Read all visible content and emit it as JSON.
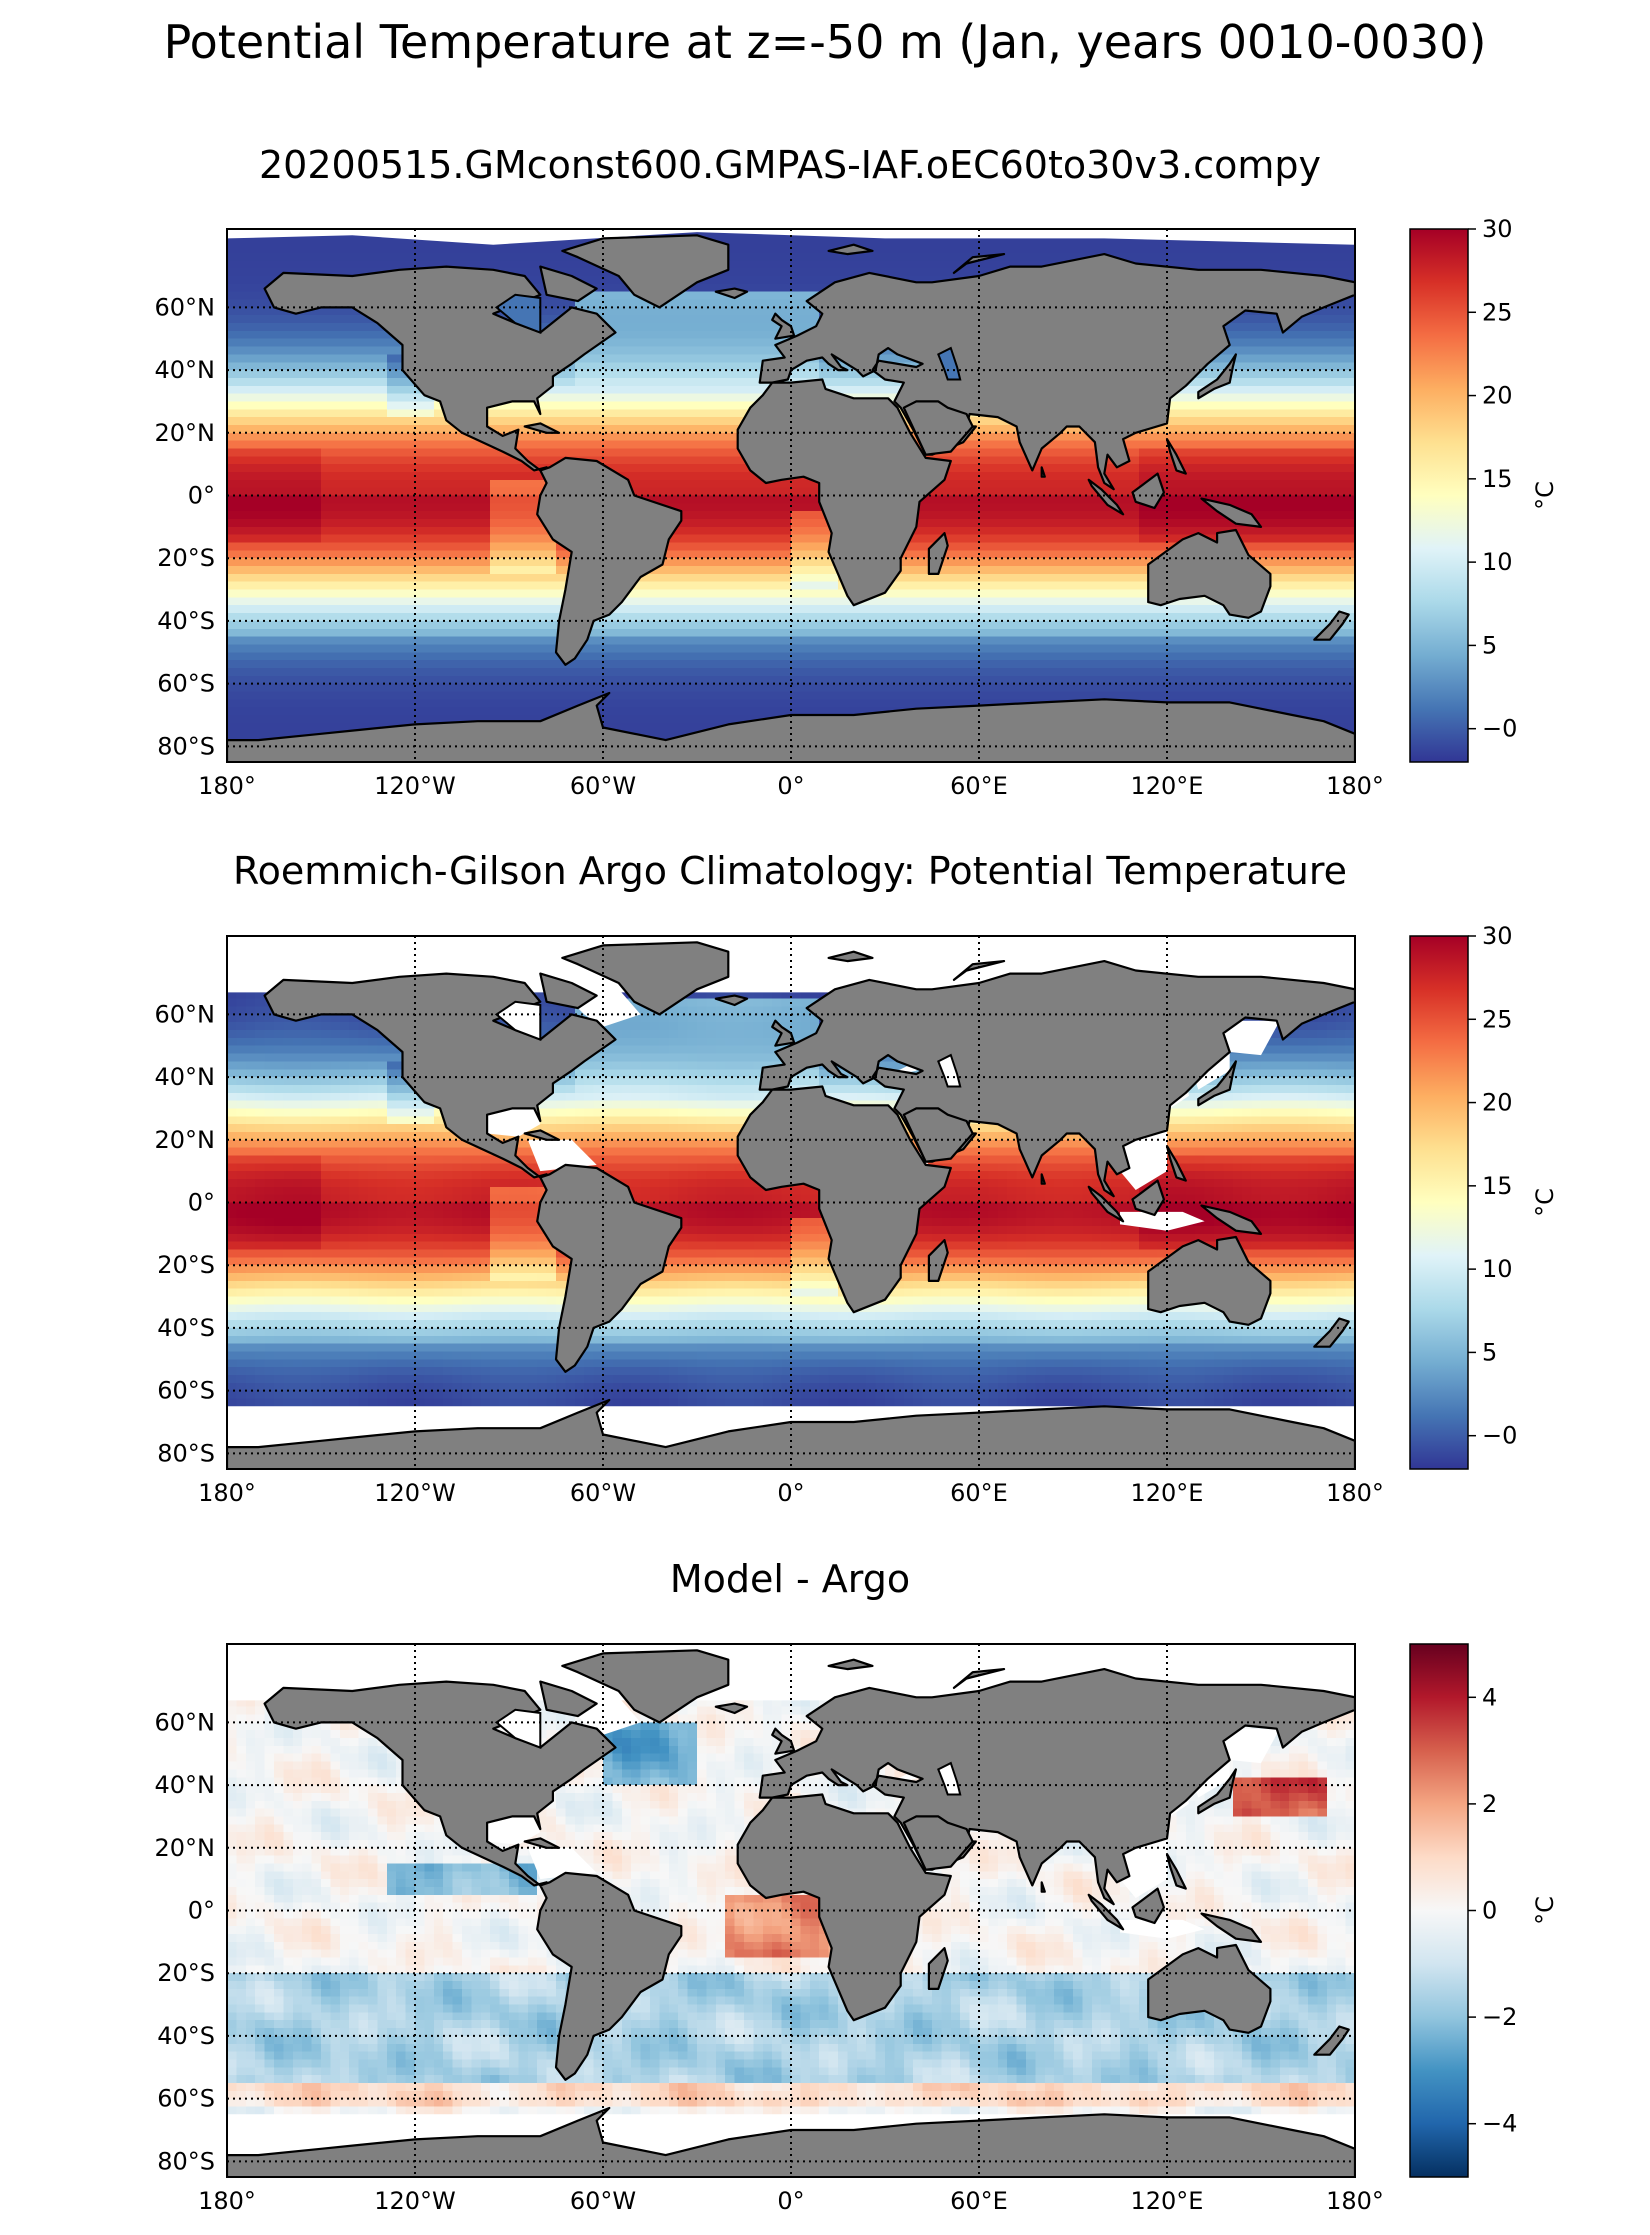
{
  "figure": {
    "title": "Potential Temperature at z=-50 m (Jan, years 0010-0030)"
  },
  "panels": [
    {
      "id": "model",
      "title": "20200515.GMconst600.GMPAS-IAF.oEC60to30v3.compy",
      "field": "model",
      "colorbar": {
        "ticks": [
          "−0",
          "5",
          "10",
          "15",
          "20",
          "25",
          "30"
        ],
        "tick_values": [
          0,
          5,
          10,
          15,
          20,
          25,
          30
        ],
        "min": -2,
        "max": 30,
        "unit": "°C",
        "cmap": "RdYlBu_r"
      }
    },
    {
      "id": "argo",
      "title": "Roemmich-Gilson Argo Climatology: Potential Temperature",
      "field": "obs",
      "colorbar": {
        "ticks": [
          "−0",
          "5",
          "10",
          "15",
          "20",
          "25",
          "30"
        ],
        "tick_values": [
          0,
          5,
          10,
          15,
          20,
          25,
          30
        ],
        "min": -2,
        "max": 30,
        "unit": "°C",
        "cmap": "RdYlBu_r"
      }
    },
    {
      "id": "bias",
      "title": "Model - Argo",
      "field": "diff",
      "colorbar": {
        "ticks": [
          "−4",
          "−2",
          "0",
          "2",
          "4"
        ],
        "tick_values": [
          -4,
          -2,
          0,
          2,
          4
        ],
        "min": -5,
        "max": 5,
        "unit": "°C",
        "cmap": "RdBu_r"
      }
    }
  ],
  "map_axes": {
    "lon_ticks": [
      "180°",
      "120°W",
      "60°W",
      "0°",
      "60°E",
      "120°E",
      "180°"
    ],
    "lon_values": [
      -180,
      -120,
      -60,
      0,
      60,
      120,
      180
    ],
    "lat_ticks": [
      "60°N",
      "40°N",
      "20°N",
      "0°",
      "20°S",
      "40°S",
      "60°S",
      "80°S"
    ],
    "lat_values": [
      60,
      40,
      20,
      0,
      -20,
      -40,
      -60,
      -80
    ],
    "lon_range": [
      -180,
      180
    ],
    "lat_range": [
      -85,
      85
    ],
    "grid": "dotted",
    "land_color": "#808080",
    "missing_color": "#ffffff"
  },
  "colors": {
    "temperature_cmap": [
      "#313695",
      "#4575b4",
      "#74add1",
      "#abd9e9",
      "#e0f3f8",
      "#ffffbf",
      "#fee090",
      "#fdae61",
      "#f46d43",
      "#d73027",
      "#a50026"
    ],
    "difference_cmap": [
      "#053061",
      "#2166ac",
      "#4393c3",
      "#92c5de",
      "#d1e5f0",
      "#f7f7f7",
      "#fddbc7",
      "#f4a582",
      "#d6604d",
      "#b2182b",
      "#67001f"
    ]
  }
}
